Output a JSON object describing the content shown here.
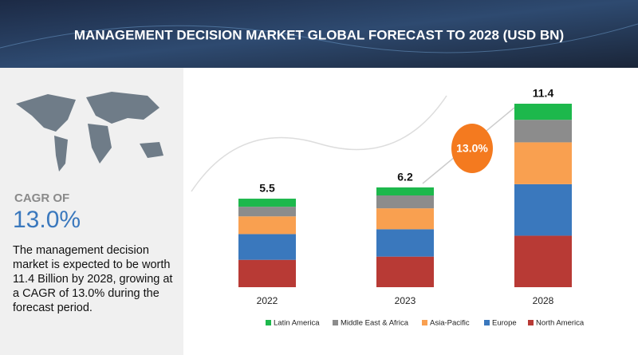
{
  "chart_data": {
    "type": "stacked-bar",
    "title": "MANAGEMENT DECISION MARKET GLOBAL FORECAST TO 2028 (USD BN)",
    "categories": [
      "2022",
      "2023",
      "2028"
    ],
    "series": [
      {
        "name": "North America",
        "color": "#b83a35",
        "values": [
          1.7,
          1.9,
          3.2
        ]
      },
      {
        "name": "Europe",
        "color": "#3a78bd",
        "values": [
          1.6,
          1.7,
          3.2
        ]
      },
      {
        "name": "Asia-Pacific",
        "color": "#f9a050",
        "values": [
          1.1,
          1.3,
          2.6
        ]
      },
      {
        "name": "Middle East & Africa",
        "color": "#8c8c8c",
        "values": [
          0.6,
          0.8,
          1.4
        ]
      },
      {
        "name": "Latin America",
        "color": "#1db84c",
        "values": [
          0.5,
          0.5,
          1.0
        ]
      }
    ],
    "totals": [
      5.5,
      6.2,
      11.4
    ],
    "growth_label": "13.0%",
    "side_panel": {
      "heading": "CAGR OF",
      "cagr": "13.0%",
      "text": "The management decision market is expected to be worth 11.4 Billion by 2028, growing at a CAGR of 13.0% during the forecast period."
    }
  }
}
